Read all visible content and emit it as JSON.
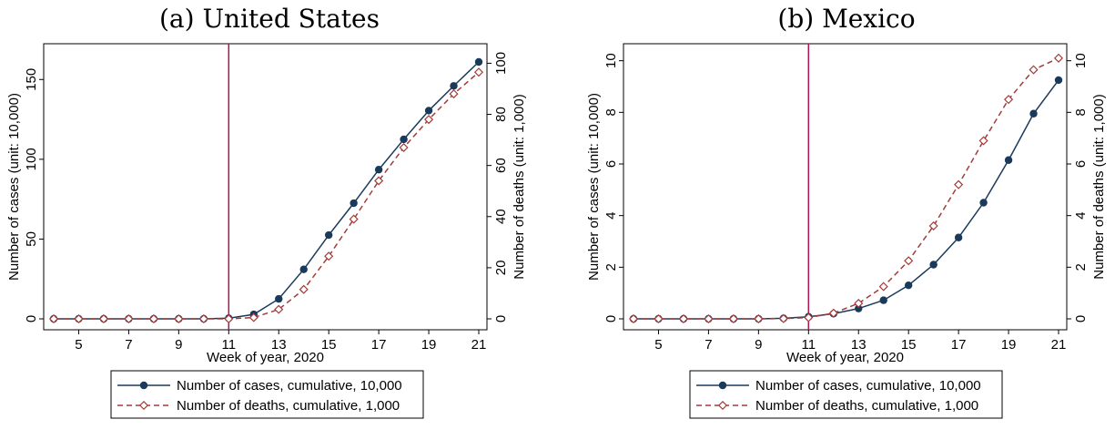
{
  "colors": {
    "cases": "#1a3a5c",
    "deaths": "#a33b38",
    "vline": "#b0134f"
  },
  "chart_data": [
    {
      "type": "line",
      "title": "(a) United States",
      "xlabel": "Week of year, 2020",
      "ylabel_left": "Number of cases (unit: 10,000)",
      "ylabel_right": "Number of deaths (unit: 1,000)",
      "xlim": [
        4,
        21
      ],
      "ylim_left": [
        0,
        165
      ],
      "ylim_right": [
        0,
        103
      ],
      "x_ticks": [
        5,
        7,
        9,
        11,
        13,
        15,
        17,
        19,
        21
      ],
      "y_ticks_left": [
        0,
        50,
        100,
        150
      ],
      "y_ticks_right": [
        0,
        20,
        40,
        60,
        80,
        100
      ],
      "vline_x": 11,
      "x": [
        4,
        5,
        6,
        7,
        8,
        9,
        10,
        11,
        12,
        13,
        14,
        15,
        16,
        17,
        18,
        19,
        20,
        21
      ],
      "series": [
        {
          "name": "Number of cases, cumulative, 10,000",
          "axis": "left",
          "marker": "circle",
          "values": [
            0,
            0,
            0,
            0,
            0,
            0,
            0,
            0.4,
            2.8,
            12.5,
            31,
            52.5,
            72.5,
            93.5,
            112.5,
            130.5,
            146,
            161
          ]
        },
        {
          "name": "Number of deaths, cumulative, 1,000",
          "axis": "right",
          "marker": "diamond",
          "values": [
            0,
            0,
            0,
            0,
            0,
            0,
            0,
            0,
            0.5,
            3.7,
            11.5,
            24.5,
            39,
            54,
            67,
            78,
            88,
            96.5
          ]
        }
      ],
      "legend_position": "bottom"
    },
    {
      "type": "line",
      "title": "(b) Mexico",
      "xlabel": "Week of year, 2020",
      "ylabel_left": "Number of cases (unit: 10,000)",
      "ylabel_right": "Number of deaths (unit: 1,000)",
      "xlim": [
        4,
        21
      ],
      "ylim_left": [
        0,
        10.2
      ],
      "ylim_right": [
        0,
        10.2
      ],
      "x_ticks": [
        5,
        7,
        9,
        11,
        13,
        15,
        17,
        19,
        21
      ],
      "y_ticks_left": [
        0,
        2,
        4,
        6,
        8,
        10
      ],
      "y_ticks_right": [
        0,
        2,
        4,
        6,
        8,
        10
      ],
      "vline_x": 11,
      "x": [
        4,
        5,
        6,
        7,
        8,
        9,
        10,
        11,
        12,
        13,
        14,
        15,
        16,
        17,
        18,
        19,
        20,
        21
      ],
      "series": [
        {
          "name": "Number of cases, cumulative, 10,000",
          "axis": "left",
          "marker": "circle",
          "values": [
            0,
            0,
            0,
            0,
            0,
            0,
            0.02,
            0.08,
            0.2,
            0.4,
            0.72,
            1.3,
            2.1,
            3.15,
            4.5,
            6.15,
            7.95,
            9.25
          ]
        },
        {
          "name": "Number of deaths, cumulative, 1,000",
          "axis": "right",
          "marker": "diamond",
          "values": [
            0,
            0,
            0,
            0,
            0,
            0,
            0.01,
            0.05,
            0.22,
            0.6,
            1.25,
            2.25,
            3.6,
            5.2,
            6.9,
            8.5,
            9.65,
            10.1
          ]
        }
      ],
      "legend_position": "bottom"
    }
  ]
}
